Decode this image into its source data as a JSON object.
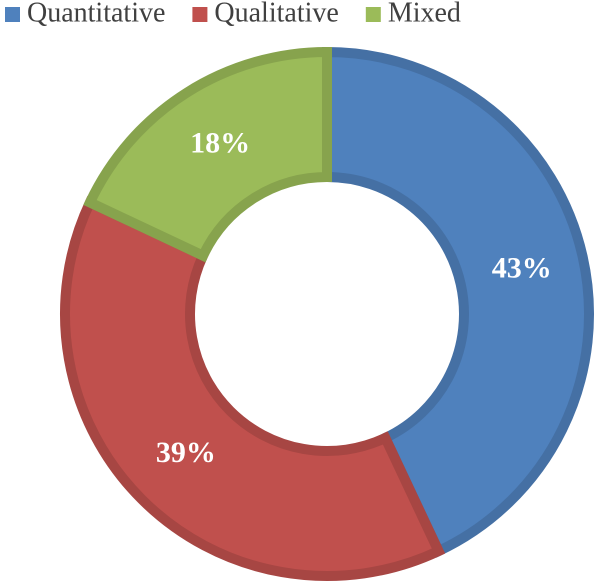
{
  "chart_data": {
    "type": "donut",
    "categories": [
      "Quantitative",
      "Qualitative",
      "Mixed"
    ],
    "values": [
      43,
      39,
      18
    ],
    "value_labels": [
      "43%",
      "39%",
      "18%"
    ],
    "colors": [
      "#4f81bd",
      "#c0504d",
      "#9bbb59"
    ],
    "legend": "top"
  }
}
